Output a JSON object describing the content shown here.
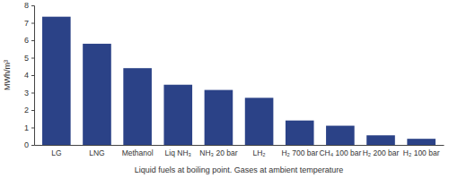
{
  "chart_data": {
    "type": "bar",
    "categories": [
      "LG",
      "LNG",
      "Methanol",
      "Liq NH₃",
      "NH₃ 20 bar",
      "LH₂",
      "H₂ 700 bar",
      "CH₄ 100 bar",
      "H₂ 200 bar",
      "H₂ 100 bar"
    ],
    "values": [
      7.35,
      5.8,
      4.4,
      3.45,
      3.15,
      2.7,
      1.4,
      1.1,
      0.55,
      0.35
    ],
    "color": "#2b4287",
    "ylim": [
      0,
      8
    ],
    "yticks": [
      0,
      1,
      2,
      3,
      4,
      5,
      6,
      7,
      8
    ],
    "y_label": "MWh/m³",
    "x_label": "Liquid fuels at boiling point. Gases at ambient temperature",
    "grid": false
  }
}
